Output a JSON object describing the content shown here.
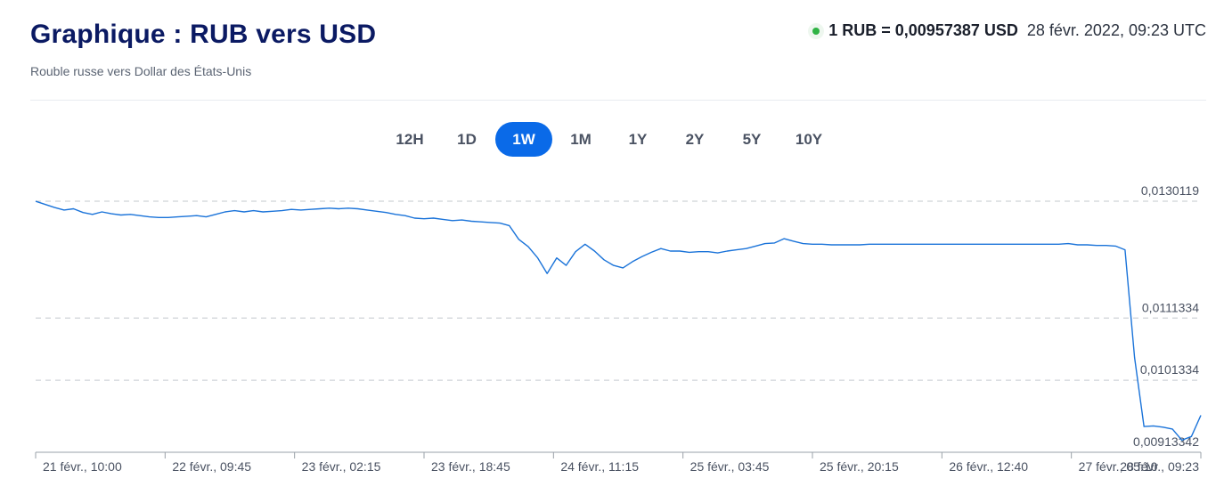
{
  "header": {
    "title": "Graphique : RUB vers USD",
    "subtitle": "Rouble russe vers Dollar des États-Unis"
  },
  "rate": {
    "value_text": "1 RUB = 0,00957387 USD",
    "timestamp": "28 févr. 2022, 09:23 UTC",
    "status_color": "#2fb344"
  },
  "range_tabs": {
    "items": [
      "12H",
      "1D",
      "1W",
      "1M",
      "1Y",
      "2Y",
      "5Y",
      "10Y"
    ],
    "active": "1W"
  },
  "chart_data": {
    "type": "line",
    "line_color": "#1a73d9",
    "x_tick_labels": [
      "21 févr., 10:00",
      "22 févr., 09:45",
      "23 févr., 02:15",
      "23 févr., 18:45",
      "24 févr., 11:15",
      "25 févr., 03:45",
      "25 févr., 20:15",
      "26 févr., 12:40",
      "27 févr., 05:10",
      "28 févr., 09:23"
    ],
    "y_tick_labels": [
      "0,0130119",
      "0,0111334",
      "0,0101334",
      "0,00913342"
    ],
    "y_ticks": [
      0.0130119,
      0.0111334,
      0.0101334,
      0.00913342
    ],
    "ylim": [
      0.00913342,
      0.0130119
    ],
    "grid": "dashed horizontal",
    "series": [
      {
        "values": [
          0.01301,
          0.01296,
          0.01291,
          0.01287,
          0.01289,
          0.01283,
          0.0128,
          0.01284,
          0.01281,
          0.01279,
          0.0128,
          0.01278,
          0.01276,
          0.01275,
          0.01275,
          0.01276,
          0.01277,
          0.01278,
          0.01276,
          0.0128,
          0.01284,
          0.01286,
          0.01284,
          0.01286,
          0.01284,
          0.01285,
          0.01286,
          0.01288,
          0.01287,
          0.01288,
          0.01289,
          0.0129,
          0.01289,
          0.0129,
          0.01289,
          0.01287,
          0.01285,
          0.01283,
          0.0128,
          0.01278,
          0.01274,
          0.01273,
          0.01274,
          0.01272,
          0.0127,
          0.01271,
          0.01269,
          0.01268,
          0.01267,
          0.01266,
          0.01262,
          0.0124,
          0.01228,
          0.0121,
          0.01185,
          0.0121,
          0.01198,
          0.0122,
          0.01232,
          0.01221,
          0.01207,
          0.01198,
          0.01194,
          0.01204,
          0.01212,
          0.01219,
          0.01225,
          0.01221,
          0.01221,
          0.01219,
          0.0122,
          0.0122,
          0.01218,
          0.01221,
          0.01223,
          0.01225,
          0.01229,
          0.01233,
          0.01234,
          0.01241,
          0.01237,
          0.01233,
          0.01232,
          0.01232,
          0.01231,
          0.01231,
          0.01231,
          0.01231,
          0.01232,
          0.01232,
          0.01232,
          0.01232,
          0.01232,
          0.01232,
          0.01232,
          0.01232,
          0.01232,
          0.01232,
          0.01232,
          0.01232,
          0.01232,
          0.01232,
          0.01232,
          0.01232,
          0.01232,
          0.01232,
          0.01232,
          0.01232,
          0.01232,
          0.01233,
          0.01231,
          0.01231,
          0.0123,
          0.0123,
          0.01229,
          0.01223,
          0.0105,
          0.00939,
          0.0094,
          0.00938,
          0.00935,
          0.00917,
          0.00923,
          0.00957
        ]
      }
    ]
  }
}
